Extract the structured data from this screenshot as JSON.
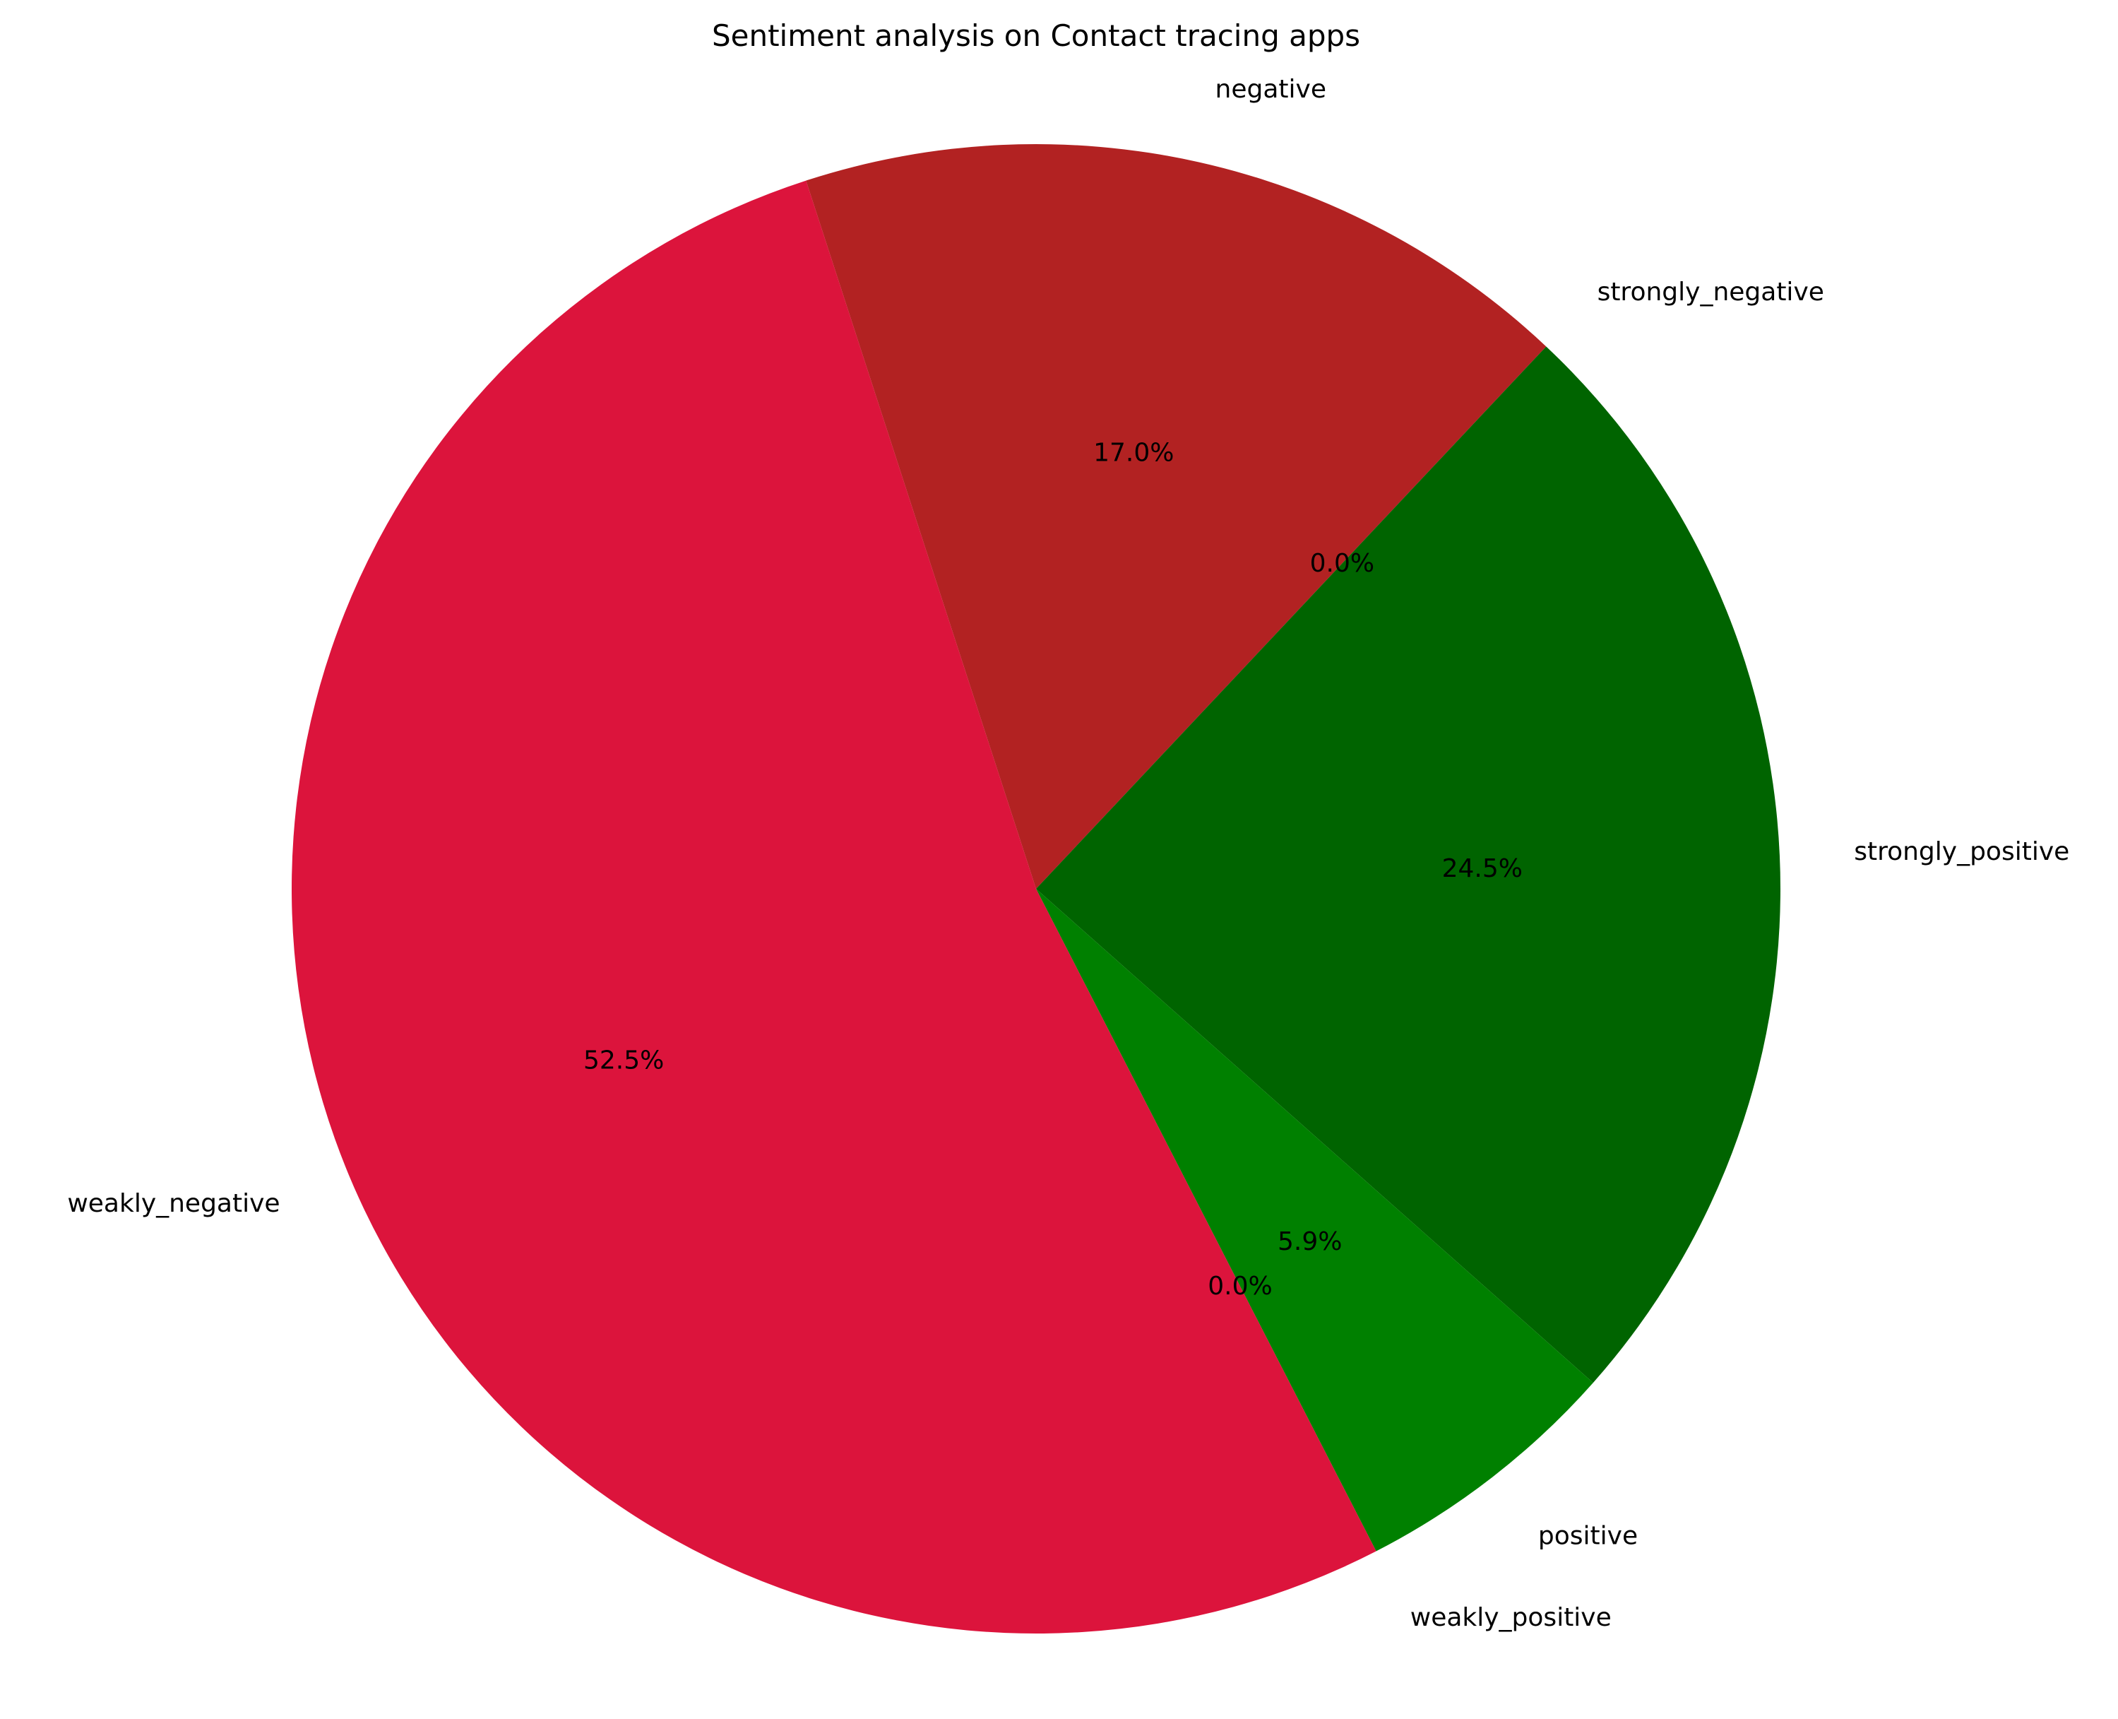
{
  "chart_data": {
    "type": "pie",
    "title": "Sentiment analysis on Contact tracing apps",
    "slices": [
      {
        "label": "negative",
        "value": 17.0,
        "pct_label": "17.0%",
        "color": "#b22222"
      },
      {
        "label": "strongly_negative",
        "value": 0.0,
        "pct_label": "0.0%",
        "color": "#8b0000"
      },
      {
        "label": "strongly_positive",
        "value": 24.5,
        "pct_label": "24.5%",
        "color": "#006400"
      },
      {
        "label": "positive",
        "value": 5.9,
        "pct_label": "5.9%",
        "color": "#008000"
      },
      {
        "label": "weakly_positive",
        "value": 0.0,
        "pct_label": "0.0%",
        "color": "#90ee90"
      },
      {
        "label": "weakly_negative",
        "value": 52.5,
        "pct_label": "52.5%",
        "color": "#dc143c"
      }
    ],
    "start_angle_deg": 108,
    "direction": "clockwise"
  }
}
